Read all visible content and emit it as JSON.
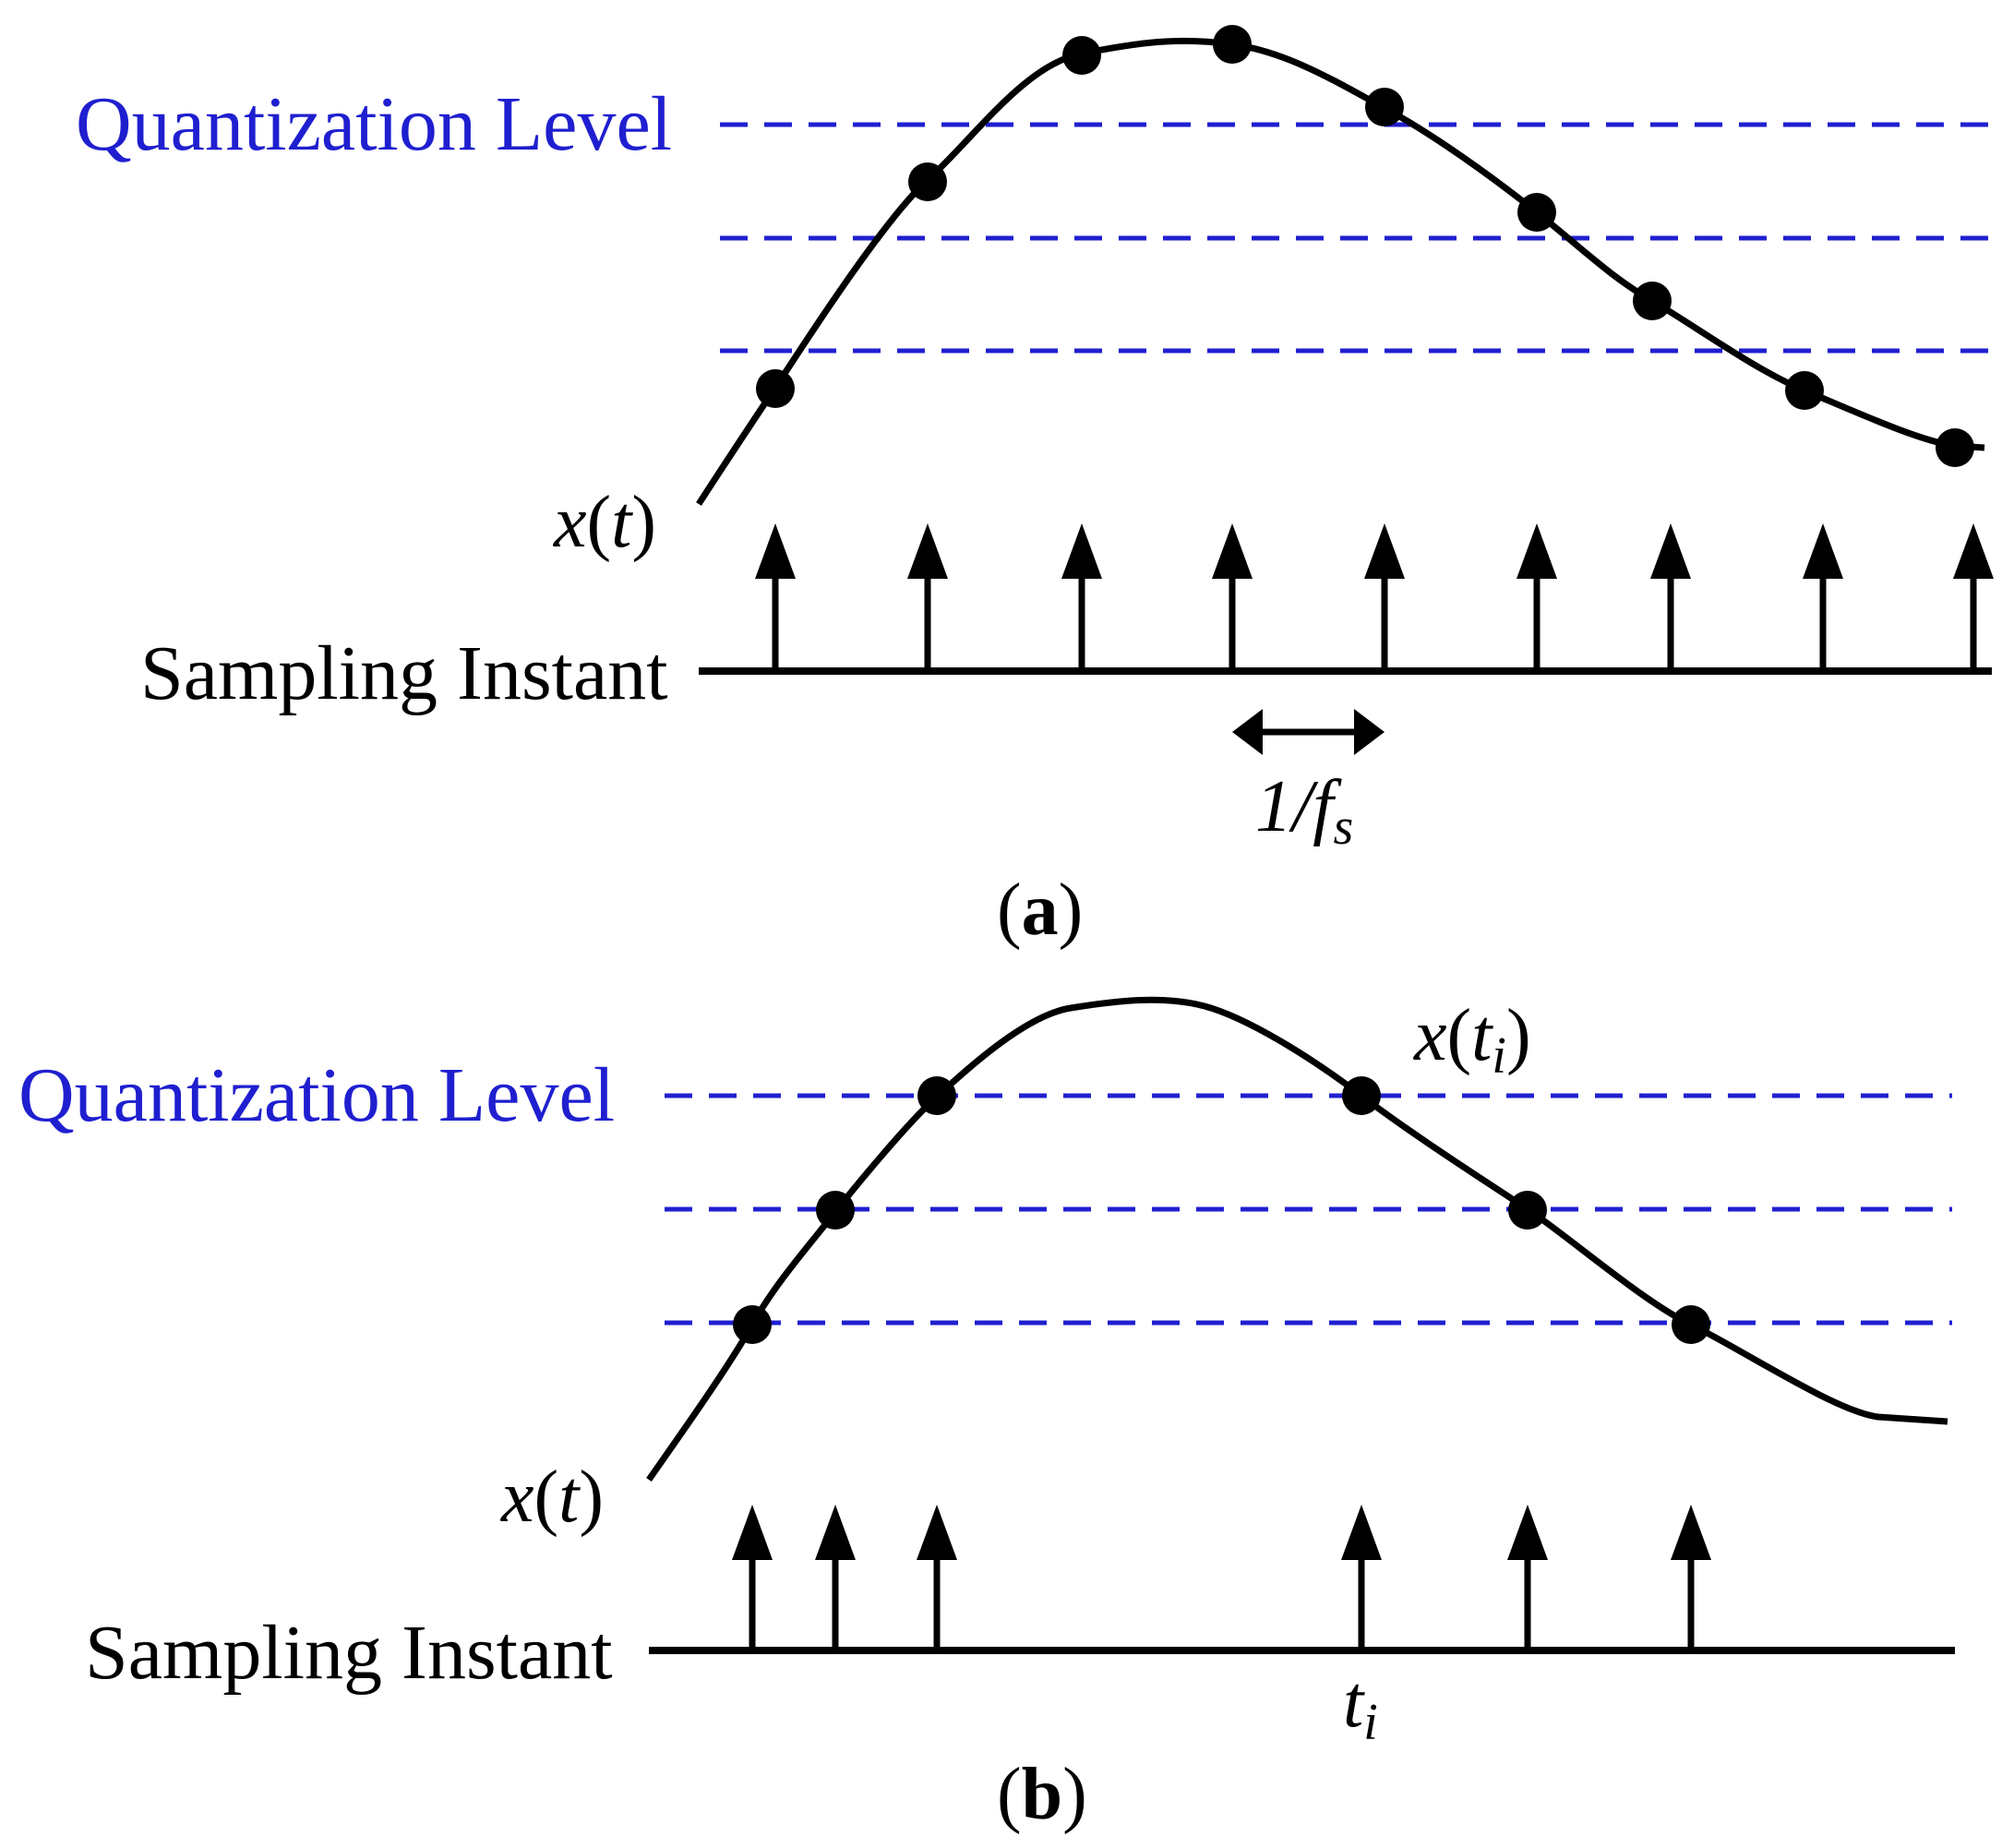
{
  "panels": [
    {
      "id": "a",
      "caption_letter": "a",
      "quantization_label": "Quantization Level",
      "sampling_label": "Sampling Instant",
      "signal_label": {
        "var": "x",
        "open": "(",
        "arg": "t",
        "close": ")"
      },
      "period_label": {
        "num": "1/",
        "f": "f",
        "sub": "s"
      }
    },
    {
      "id": "b",
      "caption_letter": "b",
      "quantization_label": "Quantization Level",
      "sampling_label": "Sampling Instant",
      "signal_label": {
        "var": "x",
        "open": "(",
        "arg": "t",
        "close": ")"
      },
      "sample_label": {
        "var": "x",
        "open": "(",
        "t": "t",
        "sub": "i",
        "close": ")"
      },
      "instant_label": {
        "t": "t",
        "sub": "i"
      }
    }
  ],
  "colors": {
    "quantization": "#1f1fd0",
    "signal": "#000000",
    "background": "#ffffff"
  }
}
